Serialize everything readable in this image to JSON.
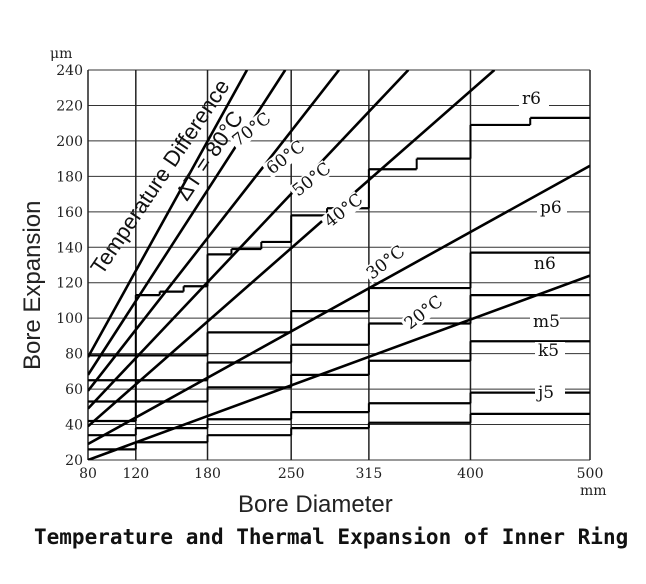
{
  "chart_data": {
    "type": "line",
    "xlabel": "Bore Diameter",
    "ylabel": "Bore Expansion",
    "x_unit": "mm",
    "y_unit": "μm",
    "xlim": [
      80,
      500
    ],
    "ylim": [
      20,
      240
    ],
    "x_ticks": [
      80,
      120,
      180,
      250,
      315,
      400,
      500
    ],
    "y_ticks": [
      20,
      40,
      60,
      80,
      100,
      120,
      140,
      160,
      180,
      200,
      220,
      240
    ],
    "grid": true,
    "diff_label": "Temperature Difference",
    "delta_label": "ΔT = 80°C",
    "series": [
      {
        "name": "80°C",
        "x": [
          80,
          213
        ],
        "y": [
          78,
          240
        ],
        "show_name": false
      },
      {
        "name": "70°C",
        "x": [
          80,
          245
        ],
        "y": [
          68,
          240
        ],
        "show_name": true
      },
      {
        "name": "60°C",
        "x": [
          80,
          290
        ],
        "y": [
          59,
          240
        ],
        "show_name": true
      },
      {
        "name": "50°C",
        "x": [
          80,
          348
        ],
        "y": [
          49,
          240
        ],
        "show_name": true
      },
      {
        "name": "40°C",
        "x": [
          80,
          420
        ],
        "y": [
          39,
          240
        ],
        "show_name": true
      },
      {
        "name": "30°C",
        "x": [
          80,
          500
        ],
        "y": [
          29,
          186
        ],
        "show_name": true
      },
      {
        "name": "20°C",
        "x": [
          80,
          500
        ],
        "y": [
          20,
          124
        ],
        "show_name": true
      }
    ],
    "fits": [
      {
        "name": "r6",
        "steps": [
          [
            80,
            120,
            79
          ],
          [
            120,
            140,
            113
          ],
          [
            140,
            160,
            115
          ],
          [
            160,
            180,
            118
          ],
          [
            180,
            200,
            136
          ],
          [
            200,
            225,
            139
          ],
          [
            225,
            250,
            143
          ],
          [
            250,
            280,
            158
          ],
          [
            280,
            315,
            162
          ],
          [
            315,
            355,
            184
          ],
          [
            355,
            400,
            190
          ],
          [
            400,
            450,
            209
          ],
          [
            450,
            500,
            213
          ]
        ]
      },
      {
        "name": "p6",
        "steps": [
          [
            80,
            120,
            65
          ],
          [
            120,
            180,
            79
          ],
          [
            180,
            250,
            92
          ],
          [
            250,
            315,
            104
          ],
          [
            315,
            400,
            117
          ],
          [
            400,
            500,
            137
          ]
        ]
      },
      {
        "name": "n6",
        "steps": [
          [
            80,
            120,
            53
          ],
          [
            120,
            180,
            65
          ],
          [
            180,
            250,
            75
          ],
          [
            250,
            315,
            85
          ],
          [
            315,
            400,
            97
          ],
          [
            400,
            500,
            113
          ]
        ]
      },
      {
        "name": "m5",
        "steps": [
          [
            80,
            120,
            42
          ],
          [
            120,
            180,
            53
          ],
          [
            180,
            250,
            61
          ],
          [
            250,
            315,
            68
          ],
          [
            315,
            400,
            76
          ],
          [
            400,
            500,
            87
          ]
        ]
      },
      {
        "name": "k5",
        "steps": [
          [
            80,
            120,
            34
          ],
          [
            120,
            180,
            38
          ],
          [
            180,
            250,
            43
          ],
          [
            250,
            315,
            47
          ],
          [
            315,
            400,
            52
          ],
          [
            400,
            500,
            58
          ]
        ]
      },
      {
        "name": "j5",
        "steps": [
          [
            80,
            120,
            26
          ],
          [
            120,
            180,
            30
          ],
          [
            180,
            250,
            34
          ],
          [
            250,
            315,
            38
          ],
          [
            315,
            400,
            41
          ],
          [
            400,
            500,
            46
          ]
        ]
      }
    ]
  },
  "caption": "Temperature and Thermal Expansion of Inner Ring"
}
